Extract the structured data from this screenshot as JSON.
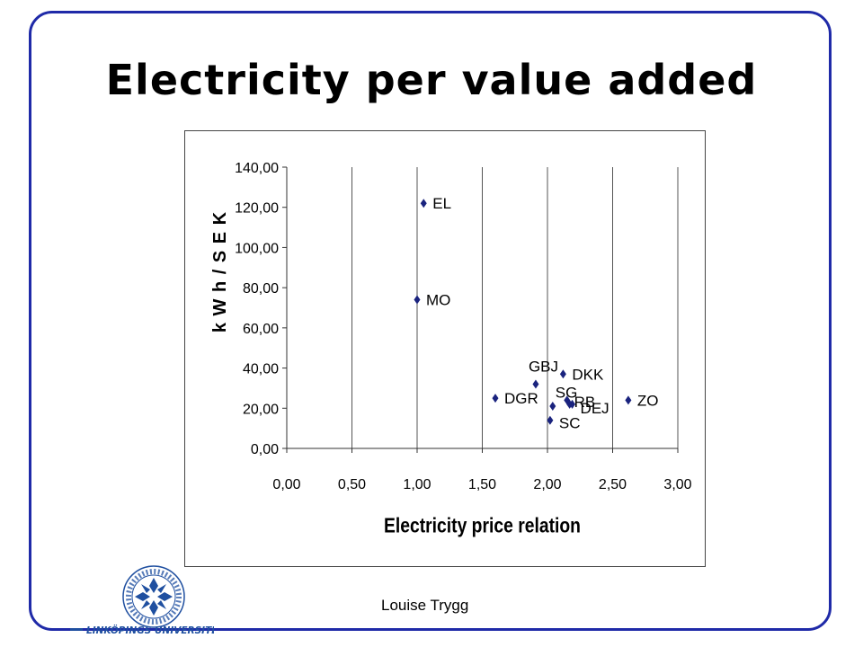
{
  "slide": {
    "title": "Electricity per value added",
    "footer": "Louise Trygg"
  },
  "logo": {
    "name": "LINKÖPINGS UNIVERSITET",
    "ring_text": "LINKÖPINGS UNIVERSITET",
    "color": "#1f4fa0"
  },
  "colors": {
    "frame": "#1f2aa8",
    "marker": "#1a237e"
  },
  "chart_data": {
    "type": "scatter",
    "title": "",
    "xlabel": "Electricity price relation",
    "ylabel": "k W h / S E K",
    "xlim": [
      0,
      3
    ],
    "ylim": [
      0,
      140
    ],
    "x_ticks": [
      "0,00",
      "0,50",
      "1,00",
      "1,50",
      "2,00",
      "2,50",
      "3,00"
    ],
    "y_ticks": [
      "0,00",
      "20,00",
      "40,00",
      "60,00",
      "80,00",
      "100,00",
      "120,00",
      "140,00"
    ],
    "x_tick_values": [
      0,
      0.5,
      1,
      1.5,
      2,
      2.5,
      3
    ],
    "y_tick_values": [
      0,
      20,
      40,
      60,
      80,
      100,
      120,
      140
    ],
    "grid": "vertical",
    "points": [
      {
        "label": "EL",
        "x": 1.05,
        "y": 122
      },
      {
        "label": "MO",
        "x": 1.0,
        "y": 74
      },
      {
        "label": "DGR",
        "x": 1.6,
        "y": 25
      },
      {
        "label": "GBJ",
        "x": 1.91,
        "y": 32
      },
      {
        "label": "DKK",
        "x": 2.12,
        "y": 37
      },
      {
        "label": "SG",
        "x": 2.15,
        "y": 24
      },
      {
        "label": "RB",
        "x": 2.17,
        "y": 22
      },
      {
        "label": "DEJ",
        "x": 2.19,
        "y": 22
      },
      {
        "label": "SC",
        "x": 2.02,
        "y": 14
      },
      {
        "label": "ZO",
        "x": 2.62,
        "y": 24
      },
      {
        "label": "",
        "x": 2.04,
        "y": 21
      }
    ]
  }
}
